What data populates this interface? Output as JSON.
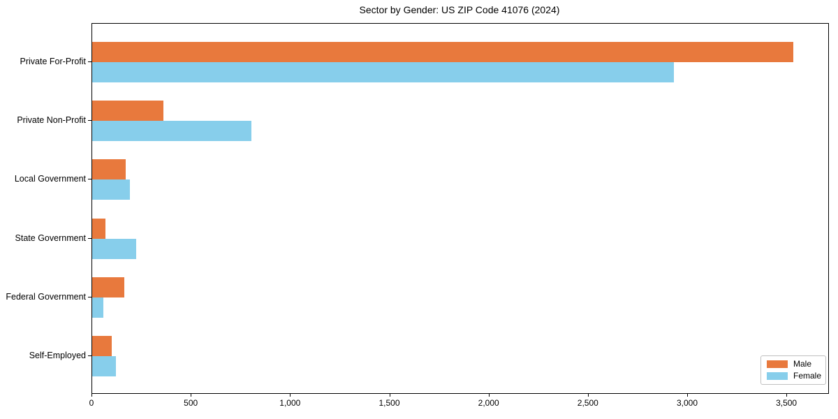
{
  "chart_data": {
    "type": "bar",
    "orientation": "horizontal",
    "title": "Sector by Gender: US ZIP Code 41076 (2024)",
    "categories": [
      "Private For-Profit",
      "Private Non-Profit",
      "Local Government",
      "State Government",
      "Federal Government",
      "Self-Employed"
    ],
    "series": [
      {
        "name": "Male",
        "color": "#e8793d",
        "values": [
          3530,
          360,
          170,
          65,
          160,
          100
        ]
      },
      {
        "name": "Female",
        "color": "#87ceeb",
        "values": [
          2930,
          800,
          190,
          220,
          55,
          120
        ]
      }
    ],
    "xlabel": "",
    "ylabel": "",
    "xlim": [
      0,
      3707
    ],
    "xticks": [
      0,
      500,
      1000,
      1500,
      2000,
      2500,
      3000,
      3500
    ],
    "xtick_labels": [
      "0",
      "500",
      "1,000",
      "1,500",
      "2,000",
      "2,500",
      "3,000",
      "3,500"
    ],
    "grid": false,
    "legend_position": "lower right",
    "colors": {
      "male": "#e8793d",
      "female": "#87ceeb",
      "spine": "#000000",
      "background": "#ffffff"
    }
  }
}
